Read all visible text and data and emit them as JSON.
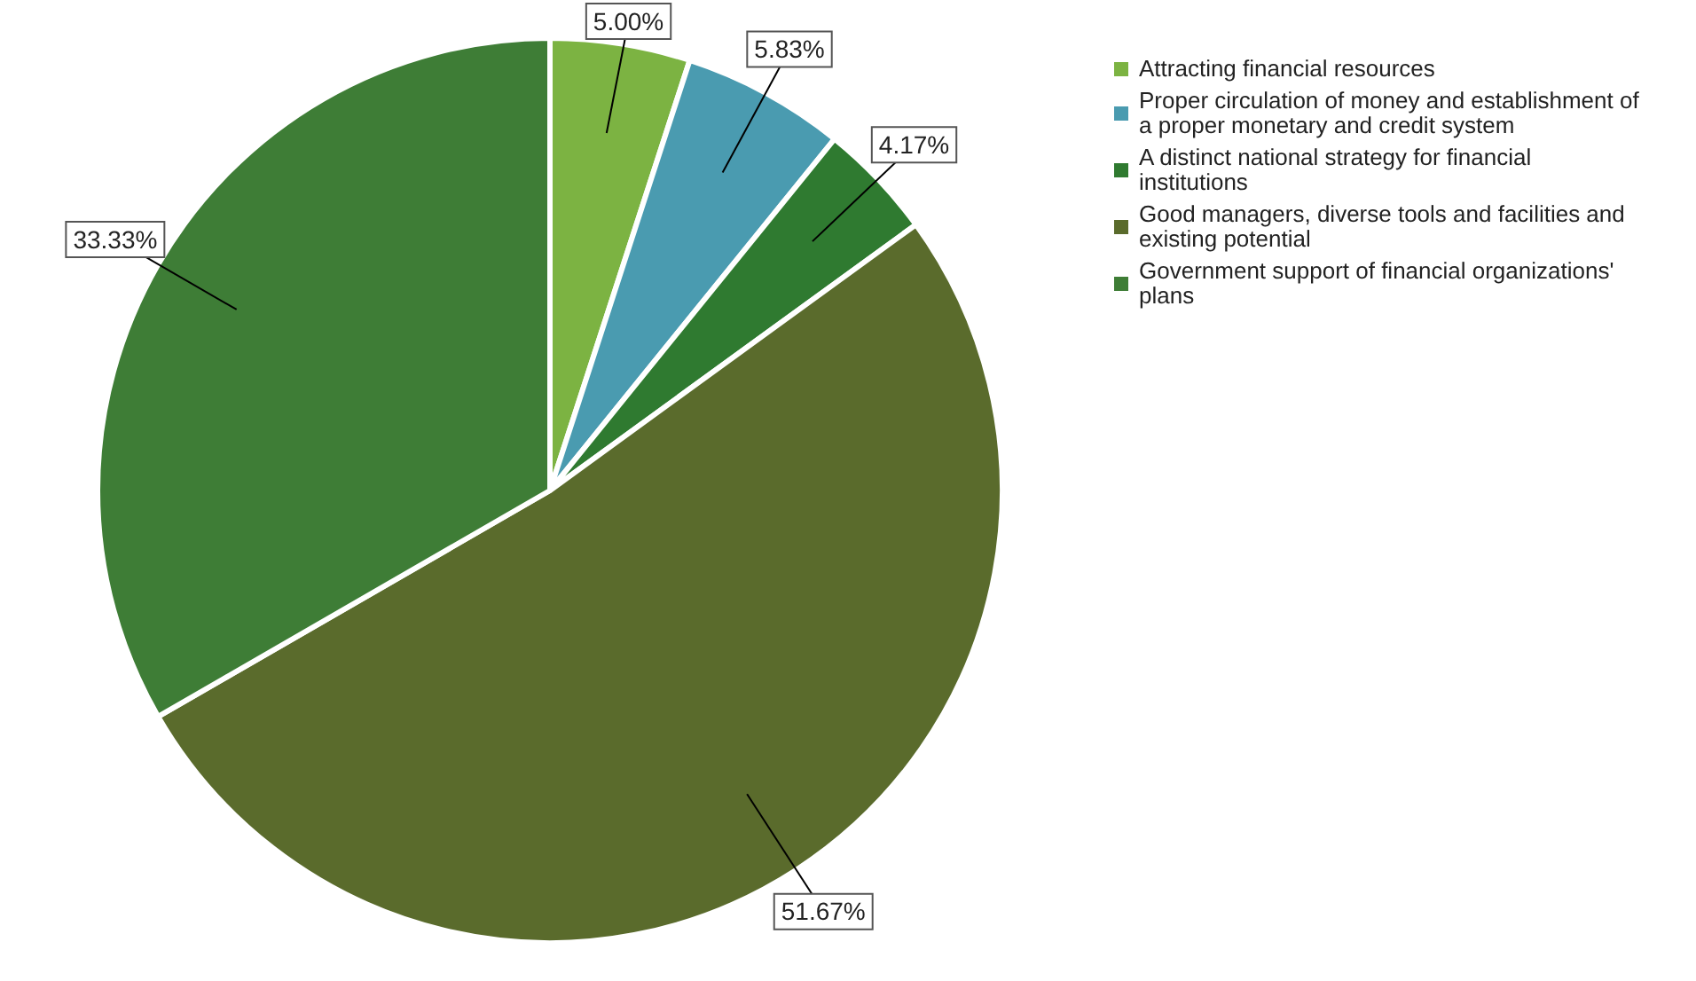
{
  "chart_data": {
    "type": "pie",
    "categories": [
      "Attracting financial resources",
      "Proper circulation of money and establishment of a proper monetary and credit system",
      "A distinct national strategy for financial institutions",
      "Good managers, diverse tools and facilities and existing potential",
      "Government support of financial organizations' plans"
    ],
    "values": [
      5.0,
      5.83,
      4.17,
      51.67,
      33.33
    ],
    "value_labels": [
      "5.00%",
      "5.83%",
      "4.17%",
      "51.67%",
      "33.33%"
    ],
    "colors": [
      "#7cb342",
      "#4a9bb0",
      "#2f7a30",
      "#5a6b2c",
      "#3e7d36"
    ],
    "legend": "right"
  }
}
